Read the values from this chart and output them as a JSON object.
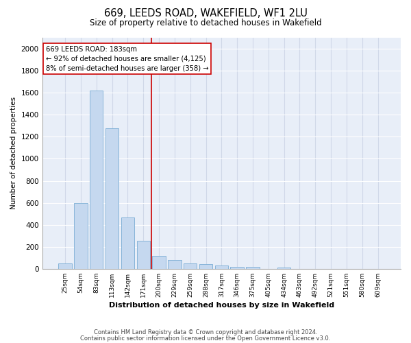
{
  "title": "669, LEEDS ROAD, WAKEFIELD, WF1 2LU",
  "subtitle": "Size of property relative to detached houses in Wakefield",
  "xlabel": "Distribution of detached houses by size in Wakefield",
  "ylabel": "Number of detached properties",
  "categories": [
    "25sqm",
    "54sqm",
    "83sqm",
    "113sqm",
    "142sqm",
    "171sqm",
    "200sqm",
    "229sqm",
    "259sqm",
    "288sqm",
    "317sqm",
    "346sqm",
    "375sqm",
    "405sqm",
    "434sqm",
    "463sqm",
    "492sqm",
    "521sqm",
    "551sqm",
    "580sqm",
    "609sqm"
  ],
  "values": [
    50,
    600,
    1620,
    1280,
    465,
    255,
    120,
    80,
    50,
    40,
    30,
    20,
    15,
    0,
    10,
    0,
    0,
    0,
    0,
    0,
    0
  ],
  "bar_color": "#c5d8ef",
  "bar_edge_color": "#7aadd4",
  "vline_x_index": 5.5,
  "vline_color": "#cc0000",
  "annotation_text": "669 LEEDS ROAD: 183sqm\n← 92% of detached houses are smaller (4,125)\n8% of semi-detached houses are larger (358) →",
  "annotation_box_color": "#cc0000",
  "ylim": [
    0,
    2100
  ],
  "yticks": [
    0,
    200,
    400,
    600,
    800,
    1000,
    1200,
    1400,
    1600,
    1800,
    2000
  ],
  "bg_color": "#e8eef8",
  "grid_color": "#d0d8e8",
  "footer_line1": "Contains HM Land Registry data © Crown copyright and database right 2024.",
  "footer_line2": "Contains public sector information licensed under the Open Government Licence v3.0."
}
